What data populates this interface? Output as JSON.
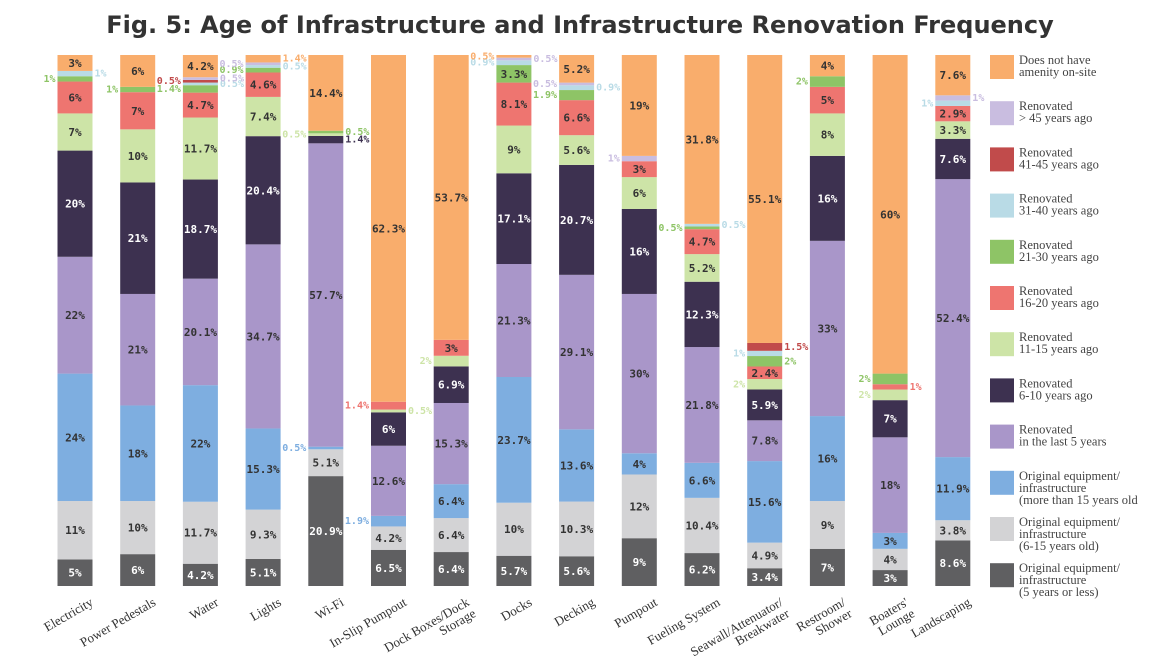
{
  "chart_data": {
    "type": "bar",
    "stacked": true,
    "percent": true,
    "title": "Fig. 5: Age of Infrastructure and Infrastructure Renovation Frequency",
    "categories": [
      [
        "Electricity"
      ],
      [
        "Power Pedestals"
      ],
      [
        "Water"
      ],
      [
        "Lights"
      ],
      [
        "Wi-Fi"
      ],
      [
        "In-Slip Pumpout"
      ],
      [
        "Dock Boxes/Dock",
        "Storage"
      ],
      [
        "Docks"
      ],
      [
        "Decking"
      ],
      [
        "Pumpout"
      ],
      [
        "Fueling System"
      ],
      [
        "Seawall/Attenuator/",
        "Breakwater"
      ],
      [
        "Restroom/",
        "Shower"
      ],
      [
        "Boaters'",
        "Lounge"
      ],
      [
        "Landscaping"
      ]
    ],
    "ylim": [
      0,
      100
    ],
    "legend_position": "right",
    "series": [
      {
        "name": [
          "Original equipment/",
          "infrastructure",
          "(5 years or less)"
        ],
        "color": "#5f5f61",
        "label_color": "#ffffff",
        "values": [
          5,
          6,
          4.2,
          5.1,
          20.9,
          6.5,
          6.4,
          5.7,
          5.6,
          9,
          6.2,
          3.4,
          7,
          3,
          8.6
        ],
        "labels": [
          "5%",
          "6%",
          "4.2%",
          "5.1%",
          "20.9%",
          "6.5%",
          "6.4%",
          "5.7%",
          "5.6%",
          "9%",
          "6.2%",
          "3.4%",
          "7%",
          "3%",
          "8.6%"
        ]
      },
      {
        "name": [
          "Original equipment/",
          "infrastructure",
          "(6-15 years old)"
        ],
        "color": "#d3d3d5",
        "label_color": "#333333",
        "values": [
          11,
          10,
          11.7,
          9.3,
          5.1,
          4.2,
          6.4,
          10,
          10.3,
          12,
          10.4,
          4.9,
          9,
          4,
          3.8
        ],
        "labels": [
          "11%",
          "10%",
          "11.7%",
          "9.3%",
          "5.1%",
          "4.2%",
          "6.4%",
          "10%",
          "10.3%",
          "12%",
          "10.4%",
          "4.9%",
          "9%",
          "4%",
          "3.8%"
        ]
      },
      {
        "name": [
          "Original equipment/",
          "infrastructure",
          "(more than 15 years old"
        ],
        "color": "#7eaee0",
        "label_color": "#333333",
        "values": [
          24,
          18,
          22,
          15.3,
          0.5,
          1.9,
          6.4,
          23.7,
          13.6,
          4,
          6.6,
          15.6,
          16,
          3,
          11.9
        ],
        "labels": [
          "24%",
          "18%",
          "22%",
          "15.3%",
          "0.5%",
          "1.9%",
          "6.4%",
          "23.7%",
          "13.6%",
          "4%",
          "6.6%",
          "15.6%",
          "16%",
          "3%",
          "11.9%"
        ]
      },
      {
        "name": [
          "Renovated",
          "in the last 5 years"
        ],
        "color": "#a996c9",
        "label_color": "#333333",
        "values": [
          22,
          21,
          20.1,
          34.7,
          57.7,
          12.6,
          15.3,
          21.3,
          29.1,
          30,
          21.8,
          7.8,
          33,
          18,
          52.4
        ],
        "labels": [
          "22%",
          "21%",
          "20.1%",
          "34.7%",
          "57.7%",
          "12.6%",
          "15.3%",
          "21.3%",
          "29.1%",
          "30%",
          "21.8%",
          "7.8%",
          "33%",
          "18%",
          "52.4%"
        ]
      },
      {
        "name": [
          "Renovated",
          "6-10 years ago"
        ],
        "color": "#3d3150",
        "label_color": "#ffffff",
        "values": [
          20,
          21,
          18.7,
          20.4,
          1.4,
          6,
          6.9,
          17.1,
          20.7,
          16,
          12.3,
          5.9,
          16,
          7,
          7.6
        ],
        "labels": [
          "20%",
          "21%",
          "18.7%",
          "20.4%",
          "1.4%",
          "6%",
          "6.9%",
          "17.1%",
          "20.7%",
          "16%",
          "12.3%",
          "5.9%",
          "16%",
          "7%",
          "7.6%"
        ]
      },
      {
        "name": [
          "Renovated",
          "11-15 years ago"
        ],
        "color": "#cde4a7",
        "label_color": "#333333",
        "values": [
          7,
          10,
          11.7,
          7.4,
          0.5,
          0.5,
          2,
          9,
          5.6,
          6,
          5.2,
          2,
          8,
          2,
          3.3
        ],
        "labels": [
          "7%",
          "10%",
          "11.7%",
          "7.4%",
          "0.5%",
          "0.5%",
          "2%",
          "9%",
          "5.6%",
          "6%",
          "5.2%",
          "2%",
          "8%",
          "2%",
          "3.3%"
        ]
      },
      {
        "name": [
          "Renovated",
          "16-20 years ago"
        ],
        "color": "#ee7570",
        "label_color": "#333333",
        "values": [
          6,
          7,
          4.7,
          4.6,
          0,
          1.4,
          3,
          8.1,
          6.6,
          3,
          4.7,
          2.4,
          5,
          1,
          2.9
        ],
        "labels": [
          "6%",
          "7%",
          "4.7%",
          "4.6%",
          "",
          "1.4%",
          "3%",
          "8.1%",
          "6.6%",
          "3%",
          "4.7%",
          "2.4%",
          "5%",
          "1%",
          "2.9%"
        ]
      },
      {
        "name": [
          "Renovated",
          "21-30 years ago"
        ],
        "color": "#8ec466",
        "label_color": "#333333",
        "values": [
          1,
          1,
          1.4,
          0.9,
          0.5,
          0,
          0,
          3.3,
          1.9,
          0,
          0.5,
          2,
          2,
          2,
          0
        ],
        "labels": [
          "1%",
          "1%",
          "1.4%",
          "0.9%",
          "0.5%",
          "",
          "",
          "3.3%",
          "1.9%",
          "",
          "0.5%",
          "2%",
          "2%",
          "2%",
          ""
        ]
      },
      {
        "name": [
          "Renovated",
          "31-40 years ago"
        ],
        "color": "#b9dbe6",
        "label_color": "#333333",
        "values": [
          1,
          0,
          0.5,
          0.5,
          0,
          0,
          0,
          0.9,
          0.9,
          0,
          0.5,
          1,
          0,
          0,
          1
        ],
        "labels": [
          "1%",
          "",
          "0.5%",
          "0.5%",
          "",
          "",
          "",
          "0.9%",
          "0.9%",
          "",
          "0.5%",
          "1%",
          "",
          "",
          "1%"
        ]
      },
      {
        "name": [
          "Renovated",
          "41-45 years ago"
        ],
        "color": "#c14b4b",
        "label_color": "#333333",
        "values": [
          0,
          0,
          0.5,
          0,
          0,
          0,
          0,
          0,
          0,
          0,
          0,
          1.5,
          0,
          0,
          0
        ],
        "labels": [
          "",
          "",
          "0.5%",
          "",
          "",
          "",
          "",
          "",
          "",
          "",
          "",
          "1.5%",
          "",
          "",
          ""
        ]
      },
      {
        "name": [
          "Renovated",
          "> 45 years ago"
        ],
        "color": "#c9bde0",
        "label_color": "#333333",
        "values": [
          0,
          0,
          0.5,
          0.5,
          0,
          0,
          0,
          0.5,
          0.5,
          1,
          0,
          0,
          0,
          0,
          1
        ],
        "labels": [
          "",
          "",
          "0.5%",
          "0.5%",
          "",
          "",
          "",
          "0.5%",
          "0.5%",
          "1%",
          "",
          "",
          "",
          "",
          "1%"
        ]
      },
      {
        "name": [
          "Does not have",
          "amenity on-site"
        ],
        "color": "#f9ad6c",
        "label_color": "#333333",
        "values": [
          3,
          6,
          4.2,
          1.4,
          14.4,
          62.3,
          53.7,
          0.5,
          5.2,
          19,
          31.8,
          55.1,
          4,
          60,
          7.6
        ],
        "labels": [
          "3%",
          "6%",
          "4.2%",
          "1.4%",
          "14.4%",
          "62.3%",
          "53.7%",
          "0.5%",
          "5.2%",
          "19%",
          "31.8%",
          "55.1%",
          "4%",
          "60%",
          "7.6%"
        ]
      }
    ]
  }
}
